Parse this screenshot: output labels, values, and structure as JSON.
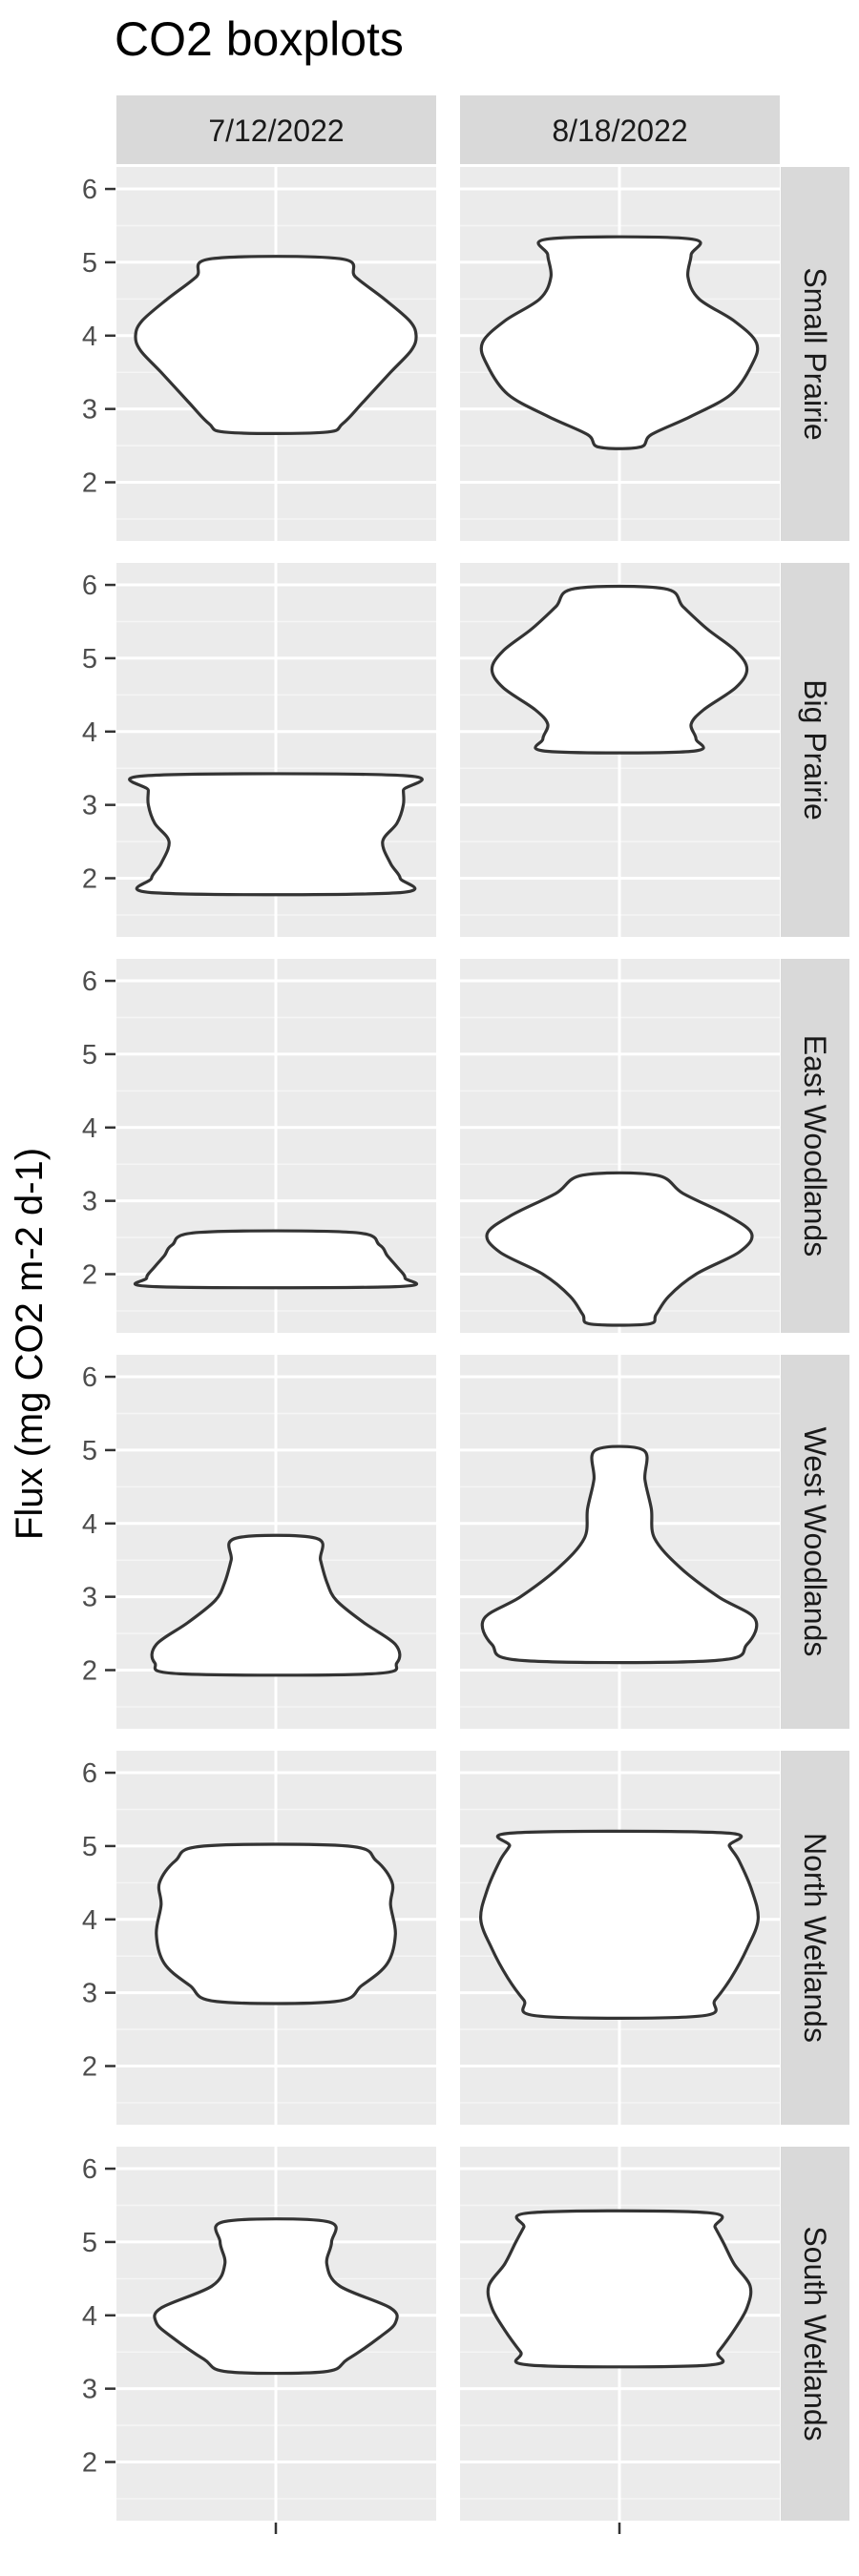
{
  "chart_data": {
    "type": "violin",
    "title": "CO2 boxplots",
    "xlabel": "",
    "ylabel": "Flux (mg CO2 m-2 d-1)",
    "ylim": [
      1.2,
      6.3
    ],
    "yticks": [
      2,
      3,
      4,
      5,
      6
    ],
    "grid": true,
    "columns": [
      "7/12/2022",
      "8/18/2022"
    ],
    "rows": [
      "Small Prairie",
      "Big Prairie",
      "East Woodlands",
      "West Woodlands",
      "North Wetlands",
      "South Wetlands"
    ],
    "violins": [
      [
        {
          "min": 2.68,
          "max": 5.05,
          "profile": [
            [
              2.68,
              0.3
            ],
            [
              2.8,
              0.42
            ],
            [
              3.1,
              0.55
            ],
            [
              3.5,
              0.72
            ],
            [
              3.8,
              0.85
            ],
            [
              4.0,
              0.88
            ],
            [
              4.2,
              0.84
            ],
            [
              4.5,
              0.68
            ],
            [
              4.8,
              0.5
            ],
            [
              5.05,
              0.4
            ]
          ]
        },
        {
          "min": 2.48,
          "max": 5.32,
          "profile": [
            [
              2.48,
              0.13
            ],
            [
              2.65,
              0.2
            ],
            [
              2.9,
              0.45
            ],
            [
              3.2,
              0.7
            ],
            [
              3.6,
              0.83
            ],
            [
              3.9,
              0.86
            ],
            [
              4.2,
              0.72
            ],
            [
              4.5,
              0.5
            ],
            [
              4.8,
              0.43
            ],
            [
              5.1,
              0.45
            ],
            [
              5.32,
              0.44
            ]
          ]
        }
      ],
      [
        {
          "min": 1.8,
          "max": 3.4,
          "profile": [
            [
              1.8,
              0.75
            ],
            [
              2.0,
              0.78
            ],
            [
              2.2,
              0.72
            ],
            [
              2.5,
              0.67
            ],
            [
              2.75,
              0.76
            ],
            [
              3.0,
              0.8
            ],
            [
              3.2,
              0.8
            ],
            [
              3.4,
              0.8
            ]
          ]
        },
        {
          "min": 3.73,
          "max": 5.95,
          "profile": [
            [
              3.73,
              0.45
            ],
            [
              3.9,
              0.48
            ],
            [
              4.1,
              0.45
            ],
            [
              4.3,
              0.53
            ],
            [
              4.6,
              0.73
            ],
            [
              4.85,
              0.8
            ],
            [
              5.1,
              0.73
            ],
            [
              5.4,
              0.55
            ],
            [
              5.7,
              0.4
            ],
            [
              5.95,
              0.28
            ]
          ]
        }
      ],
      [
        {
          "min": 1.83,
          "max": 2.57,
          "profile": [
            [
              1.83,
              0.75
            ],
            [
              1.95,
              0.81
            ],
            [
              2.1,
              0.76
            ],
            [
              2.25,
              0.7
            ],
            [
              2.4,
              0.65
            ],
            [
              2.57,
              0.48
            ]
          ]
        },
        {
          "min": 1.32,
          "max": 3.35,
          "profile": [
            [
              1.32,
              0.18
            ],
            [
              1.45,
              0.23
            ],
            [
              1.7,
              0.31
            ],
            [
              2.0,
              0.48
            ],
            [
              2.3,
              0.75
            ],
            [
              2.55,
              0.83
            ],
            [
              2.8,
              0.68
            ],
            [
              3.1,
              0.4
            ],
            [
              3.35,
              0.23
            ]
          ]
        }
      ],
      [
        {
          "min": 1.95,
          "max": 3.8,
          "profile": [
            [
              1.95,
              0.6
            ],
            [
              2.1,
              0.76
            ],
            [
              2.35,
              0.75
            ],
            [
              2.65,
              0.55
            ],
            [
              2.95,
              0.38
            ],
            [
              3.2,
              0.32
            ],
            [
              3.5,
              0.28
            ],
            [
              3.8,
              0.25
            ]
          ]
        },
        {
          "min": 2.13,
          "max": 5.0,
          "profile": [
            [
              2.13,
              0.6
            ],
            [
              2.35,
              0.8
            ],
            [
              2.7,
              0.85
            ],
            [
              3.0,
              0.62
            ],
            [
              3.4,
              0.38
            ],
            [
              3.8,
              0.22
            ],
            [
              4.2,
              0.2
            ],
            [
              4.6,
              0.16
            ],
            [
              5.0,
              0.15
            ]
          ]
        }
      ],
      [
        {
          "min": 2.88,
          "max": 5.0,
          "profile": [
            [
              2.88,
              0.37
            ],
            [
              3.1,
              0.54
            ],
            [
              3.4,
              0.7
            ],
            [
              3.8,
              0.75
            ],
            [
              4.2,
              0.72
            ],
            [
              4.5,
              0.73
            ],
            [
              4.8,
              0.63
            ],
            [
              5.0,
              0.45
            ]
          ]
        },
        {
          "min": 2.68,
          "max": 5.18,
          "profile": [
            [
              2.68,
              0.5
            ],
            [
              2.9,
              0.6
            ],
            [
              3.2,
              0.7
            ],
            [
              3.6,
              0.8
            ],
            [
              4.0,
              0.87
            ],
            [
              4.4,
              0.83
            ],
            [
              4.8,
              0.75
            ],
            [
              5.0,
              0.69
            ],
            [
              5.18,
              0.66
            ]
          ]
        }
      ],
      [
        {
          "min": 3.23,
          "max": 5.28,
          "profile": [
            [
              3.23,
              0.3
            ],
            [
              3.4,
              0.45
            ],
            [
              3.7,
              0.65
            ],
            [
              3.9,
              0.75
            ],
            [
              4.1,
              0.72
            ],
            [
              4.4,
              0.4
            ],
            [
              4.7,
              0.32
            ],
            [
              5.0,
              0.35
            ],
            [
              5.28,
              0.32
            ]
          ]
        },
        {
          "min": 3.32,
          "max": 5.4,
          "profile": [
            [
              3.32,
              0.55
            ],
            [
              3.5,
              0.62
            ],
            [
              3.8,
              0.72
            ],
            [
              4.1,
              0.8
            ],
            [
              4.4,
              0.82
            ],
            [
              4.7,
              0.72
            ],
            [
              5.0,
              0.65
            ],
            [
              5.2,
              0.6
            ],
            [
              5.4,
              0.55
            ]
          ]
        }
      ]
    ]
  }
}
